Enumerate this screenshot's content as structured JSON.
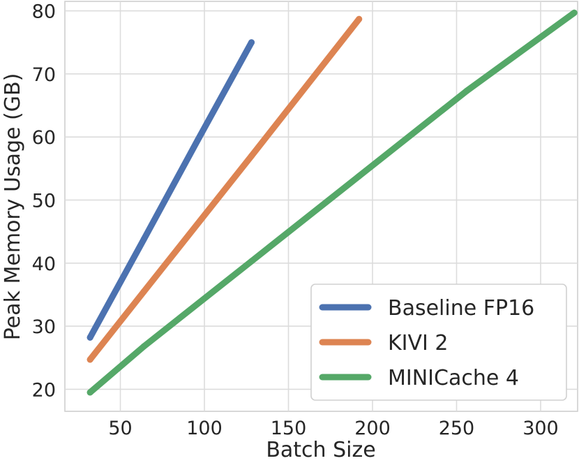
{
  "chart_data": {
    "type": "line",
    "title": "",
    "xlabel": "Batch Size",
    "ylabel": "Peak Memory Usage (GB)",
    "xlim": [
      17,
      322
    ],
    "ylim": [
      16.5,
      81.5
    ],
    "xticks": [
      50,
      100,
      150,
      200,
      250,
      300
    ],
    "yticks": [
      20,
      30,
      40,
      50,
      60,
      70,
      80
    ],
    "grid": true,
    "legend_position": "lower-right",
    "series": [
      {
        "name": "Baseline FP16",
        "color": "#4c72b0",
        "x": [
          32,
          64,
          96,
          128
        ],
        "y": [
          28.2,
          43.8,
          59.5,
          75.0
        ]
      },
      {
        "name": "KIVI 2",
        "color": "#dd8452",
        "x": [
          32,
          64,
          128,
          192
        ],
        "y": [
          24.7,
          35.5,
          57.0,
          78.7
        ]
      },
      {
        "name": "MINICache 4",
        "color": "#55a868",
        "x": [
          32,
          64,
          128,
          192,
          256,
          320
        ],
        "y": [
          19.5,
          26.8,
          40.3,
          53.8,
          67.3,
          79.7
        ]
      }
    ]
  }
}
